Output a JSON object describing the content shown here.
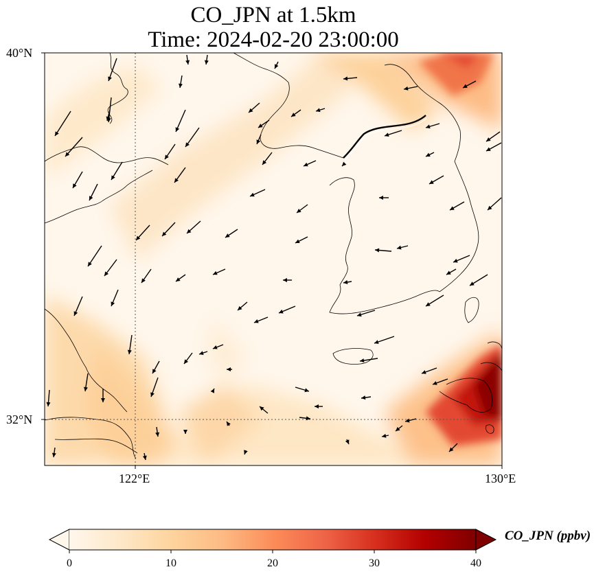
{
  "title": {
    "line1": "CO_JPN at 1.5km",
    "line2": "Time: 2024-02-20 23:00:00"
  },
  "map": {
    "lat_ticks": [
      "40°N",
      "32°N"
    ],
    "lon_ticks": [
      "122°E",
      "130°E"
    ],
    "extent": {
      "lon": [
        120,
        130
      ],
      "lat": [
        31,
        40
      ]
    },
    "gridlines": {
      "lon": 122,
      "lat": 32,
      "style": "dotted"
    }
  },
  "colorbar": {
    "label": "CO_JPN (ppbv)",
    "ticks": [
      "0",
      "10",
      "20",
      "30",
      "40"
    ],
    "range": [
      0,
      40
    ],
    "cmap": "OrRd",
    "extend": "both",
    "colors": [
      "#fff7ec",
      "#fee8c8",
      "#fdd49e",
      "#fdbb84",
      "#fc8d59",
      "#ef6548",
      "#d7301f",
      "#b30000",
      "#7f0000"
    ]
  },
  "chart_data": {
    "type": "heatmap",
    "title": "CO_JPN at 1.5km\nTime: 2024-02-20 23:00:00",
    "variable": "CO_JPN (ppbv)",
    "features": [
      {
        "name": "high CO plume off southern Japan (Kyushu)",
        "approx_value": 40
      },
      {
        "name": "elevated band north-east of Korean Peninsula",
        "approx_value": 25
      },
      {
        "name": "diagonal band across Yellow Sea",
        "approx_value": 8
      },
      {
        "name": "east China coast",
        "approx_value": 10
      },
      {
        "name": "background",
        "approx_value": 2
      }
    ],
    "wind_vectors": "dominant flow from north-east over Yellow Sea and Korea"
  }
}
